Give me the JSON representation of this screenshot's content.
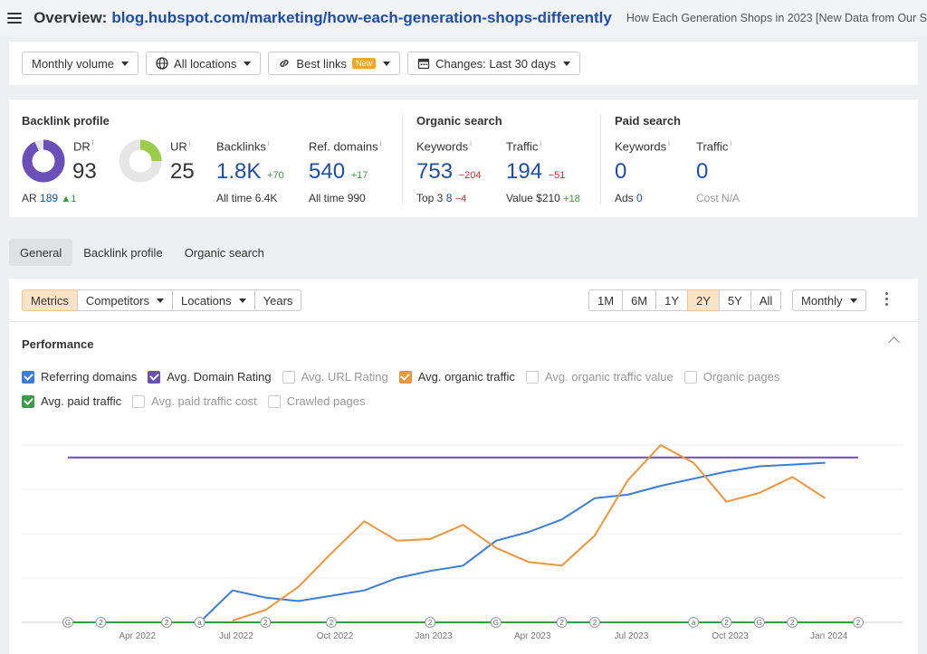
{
  "header": {
    "prefix": "Overview:",
    "url": "blog.hubspot.com/marketing/how-each-generation-shops-differently",
    "page_title": "How Each Generation Shops in 2023 [New Data from Our S"
  },
  "filters": {
    "volume": "Monthly volume",
    "locations": "All locations",
    "links": "Best links",
    "new_badge": "New",
    "changes": "Changes: Last 30 days"
  },
  "backlink_profile": {
    "title": "Backlink profile",
    "dr_label": "DR",
    "dr_value": "93",
    "ur_label": "UR",
    "ur_value": "25",
    "ar_label": "AR",
    "ar_value": "189",
    "ar_delta": "▲1",
    "backlinks_label": "Backlinks",
    "backlinks_value": "1.8K",
    "backlinks_delta": "+70",
    "backlinks_alltime_label": "All time",
    "backlinks_alltime": "6.4K",
    "refdomains_label": "Ref. domains",
    "refdomains_value": "540",
    "refdomains_delta": "+17",
    "refdomains_alltime_label": "All time",
    "refdomains_alltime": "990",
    "dr_fraction": 0.93,
    "ur_fraction": 0.25
  },
  "organic_search": {
    "title": "Organic search",
    "keywords_label": "Keywords",
    "keywords_value": "753",
    "keywords_delta": "−204",
    "top3_label": "Top 3",
    "top3_value": "8",
    "top3_delta": "−4",
    "traffic_label": "Traffic",
    "traffic_value": "194",
    "traffic_delta": "−51",
    "value_label": "Value",
    "value_value": "$210",
    "value_delta": "+18"
  },
  "paid_search": {
    "title": "Paid search",
    "keywords_label": "Keywords",
    "keywords_value": "0",
    "ads_label": "Ads",
    "ads_value": "0",
    "traffic_label": "Traffic",
    "traffic_value": "0",
    "cost_label": "Cost",
    "cost_value": "N/A"
  },
  "tabs": [
    "General",
    "Backlink profile",
    "Organic search"
  ],
  "controls": {
    "segments": [
      "Metrics",
      "Competitors",
      "Locations",
      "Years"
    ],
    "ranges": [
      "1M",
      "6M",
      "1Y",
      "2Y",
      "5Y",
      "All"
    ],
    "active_range": "2Y",
    "interval": "Monthly"
  },
  "performance": {
    "title": "Performance",
    "legend": [
      {
        "label": "Referring domains",
        "checked": true,
        "color": "#3b7dd8"
      },
      {
        "label": "Avg. Domain Rating",
        "checked": true,
        "color": "#6a4fb8"
      },
      {
        "label": "Avg. URL Rating",
        "checked": false,
        "color": ""
      },
      {
        "label": "Avg. organic traffic",
        "checked": true,
        "color": "#f0953a"
      },
      {
        "label": "Avg. organic traffic value",
        "checked": false,
        "color": ""
      },
      {
        "label": "Organic pages",
        "checked": false,
        "color": ""
      },
      {
        "label": "Avg. paid traffic",
        "checked": true,
        "color": "#3d9a4a"
      },
      {
        "label": "Avg. paid traffic cost",
        "checked": false,
        "color": ""
      },
      {
        "label": "Crawled pages",
        "checked": false,
        "color": ""
      }
    ]
  },
  "chart_data": {
    "type": "line",
    "x_ticks": [
      "Apr 2022",
      "Jul 2022",
      "Oct 2022",
      "Jan 2023",
      "Apr 2023",
      "Jul 2023",
      "Oct 2023",
      "Jan 2024"
    ],
    "months": 25,
    "ylim": [
      0,
      100
    ],
    "series": [
      {
        "name": "Avg. Domain Rating",
        "color": "#6a4fb8",
        "values": [
          93,
          93,
          93,
          93,
          93,
          93,
          93,
          93,
          93,
          93,
          93,
          93,
          93,
          93,
          93,
          93,
          93,
          93,
          93,
          93,
          93,
          93,
          93,
          93,
          93
        ]
      },
      {
        "name": "Referring domains",
        "color": "#3b7dd8",
        "values": [
          null,
          null,
          null,
          null,
          0,
          18,
          14,
          12,
          15,
          18,
          25,
          29,
          32,
          46,
          51,
          58,
          70,
          72,
          77,
          81,
          85,
          88,
          89,
          90,
          null
        ]
      },
      {
        "name": "Avg. organic traffic",
        "color": "#f0953a",
        "values": [
          null,
          null,
          null,
          null,
          null,
          1,
          7,
          20,
          39,
          57,
          46,
          47,
          55,
          42,
          34,
          32,
          49,
          80,
          100,
          90,
          68,
          73,
          82,
          70,
          null
        ]
      },
      {
        "name": "Avg. paid traffic",
        "color": "#3d9a4a",
        "values": [
          0,
          0,
          0,
          0,
          0,
          0,
          0,
          0,
          0,
          0,
          0,
          0,
          0,
          0,
          0,
          0,
          0,
          0,
          0,
          0,
          0,
          0,
          0,
          0,
          0
        ]
      }
    ],
    "annotations": [
      "G",
      "2",
      "",
      "2",
      "a",
      "",
      "2",
      "",
      "2",
      "",
      "",
      "2",
      "",
      "G",
      "",
      "2",
      "2",
      "",
      "",
      "a",
      "2",
      "G",
      "2",
      "",
      "2"
    ]
  }
}
